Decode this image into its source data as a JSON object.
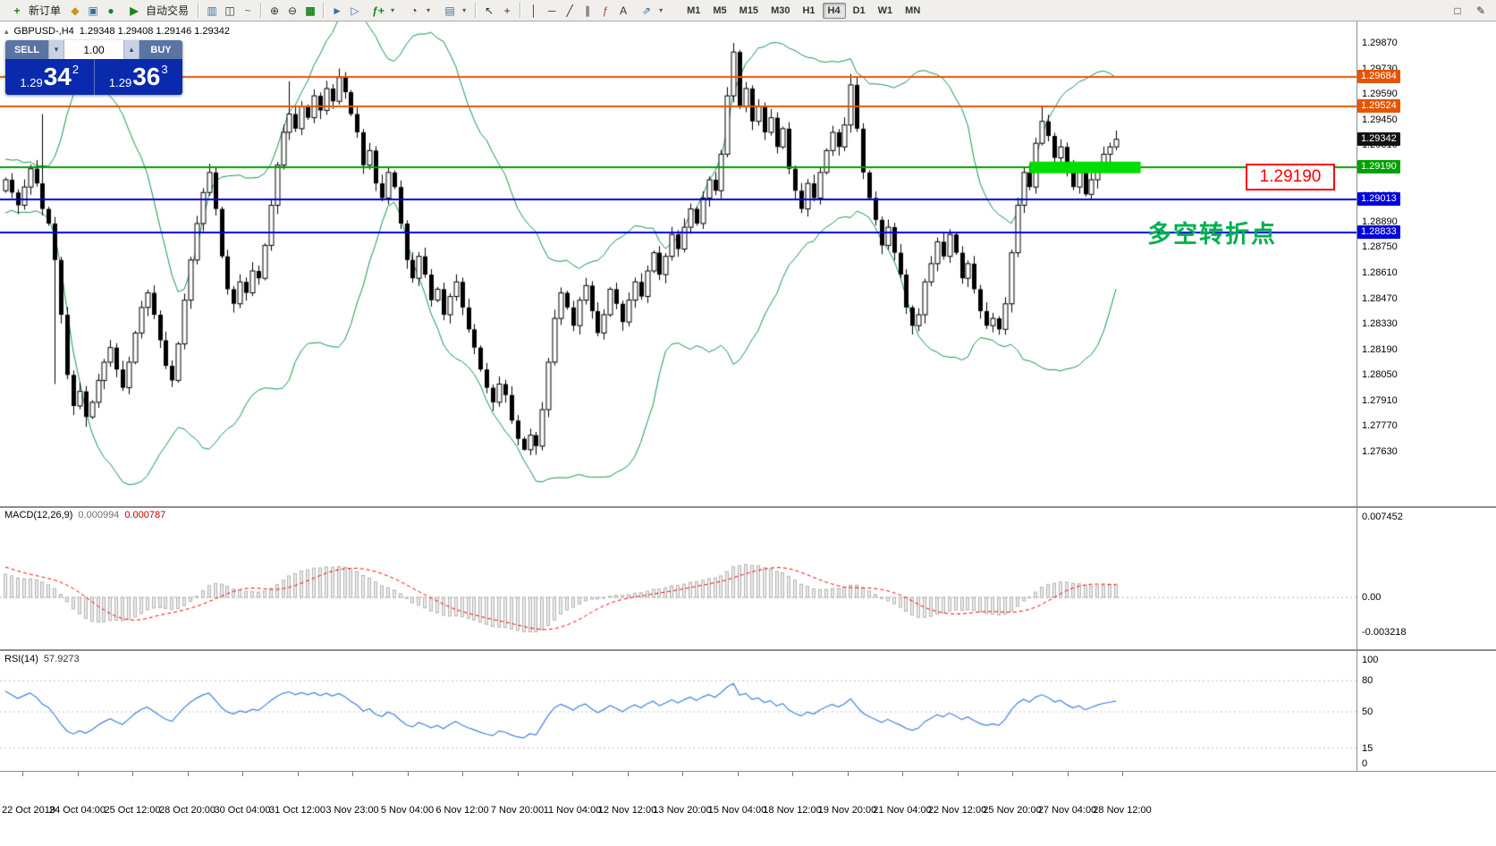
{
  "toolbar": {
    "new_order_label": "新订单",
    "autotrading_label": "自动交易",
    "timeframes": [
      "M1",
      "M5",
      "M15",
      "M30",
      "H1",
      "H4",
      "D1",
      "W1",
      "MN"
    ],
    "active_timeframe": "H4"
  },
  "icons": {
    "collapse": "▴",
    "new_order_plus": "+",
    "metaeditor": "◆",
    "data_window": "▣",
    "navigator": "●",
    "autotrading_play": "▶",
    "bars_chart": "▥",
    "candle_chart": "◫",
    "line_chart": "~",
    "zoom_in": "⊕",
    "zoom_out": "⊖",
    "tile_windows": "▦",
    "auto_scroll": "►",
    "chart_shift": "▷",
    "indicators": "ƒ+",
    "periods": "◔",
    "templates": "▤",
    "cursor": "↖",
    "crosshair": "+",
    "vertical_line": "│",
    "horizontal_line": "─",
    "trendline": "╱",
    "channel": "∥",
    "fibonacci": "ƒ",
    "text_tool": "A",
    "arrows_tool": "⇗",
    "dropdown_caret": "▾",
    "spinner_up": "▴",
    "spinner_down": "▾",
    "right_icon_1": "□",
    "right_icon_2": "✎"
  },
  "chart_header": {
    "symbol_period": "GBPUSD-,H4",
    "quote_line": "1.29348 1.29408 1.29146 1.29342"
  },
  "quote_panel": {
    "sell_label": "SELL",
    "buy_label": "BUY",
    "lot_value": "1.00",
    "sell_price_prefix": "1.29",
    "sell_price_big": "34",
    "sell_price_sup": "2",
    "buy_price_prefix": "1.29",
    "buy_price_big": "36",
    "buy_price_sup": "3",
    "panel_color": "#0A2AAE"
  },
  "annotations": {
    "pivot_label": "多空转折点",
    "price_tag": "1.29190"
  },
  "time_axis": {
    "labels": [
      "22 Oct 2019",
      "24 Oct 04:00",
      "25 Oct 12:00",
      "28 Oct 20:00",
      "30 Oct 04:00",
      "31 Oct 12:00",
      "3 Nov 23:00",
      "5 Nov 04:00",
      "6 Nov 12:00",
      "7 Nov 20:00",
      "11 Nov 04:00",
      "12 Nov 12:00",
      "13 Nov 20:00",
      "15 Nov 04:00",
      "18 Nov 12:00",
      "19 Nov 20:00",
      "21 Nov 04:00",
      "22 Nov 12:00",
      "25 Nov 20:00",
      "27 Nov 04:00",
      "28 Nov 12:00"
    ]
  },
  "chart_data": [
    {
      "type": "candlestick",
      "symbol": "GBPUSD-",
      "period": "H4",
      "ohlc_display": {
        "open": "1.29348",
        "high": "1.29408",
        "low": "1.29146",
        "close": "1.29342"
      },
      "ylim": [
        1.2733,
        1.2999
      ],
      "y_axis_labels": [
        "1.29870",
        "1.29730",
        "1.29590",
        "1.29450",
        "1.29310",
        "1.29170",
        "1.29030",
        "1.28890",
        "1.28750",
        "1.28610",
        "1.28470",
        "1.28330",
        "1.28190",
        "1.28050",
        "1.27910",
        "1.27770",
        "1.27630"
      ],
      "price_badges": [
        {
          "price": 1.29684,
          "label": "1.29684",
          "color": "#e65400"
        },
        {
          "price": 1.29524,
          "label": "1.29524",
          "color": "#e65400"
        },
        {
          "price": 1.29342,
          "label": "1.29342",
          "color": "#111111"
        },
        {
          "price": 1.2919,
          "label": "1.29190",
          "color": "#00a000"
        },
        {
          "price": 1.29013,
          "label": "1.29013",
          "color": "#0000dd"
        },
        {
          "price": 1.28833,
          "label": "1.28833",
          "color": "#0000dd"
        }
      ],
      "hlines": [
        {
          "price": 1.29684,
          "color": "#e65400",
          "width": 2
        },
        {
          "price": 1.29524,
          "color": "#e65400",
          "width": 2
        },
        {
          "price": 1.2919,
          "color": "#00a000",
          "width": 2
        },
        {
          "price": 1.29013,
          "color": "#0000e0",
          "width": 2
        },
        {
          "price": 1.28833,
          "color": "#0000e0",
          "width": 2
        }
      ],
      "highlight_zone": {
        "price": 1.2919,
        "from_index": 166,
        "to_index": 184,
        "color": "#00dd00"
      },
      "bollinger": {
        "period": 20,
        "deviation": 2,
        "color": "#149648"
      },
      "bull_color": "#ffffff",
      "bear_color": "#000000",
      "warmup_closes": [
        1.2742,
        1.2756,
        1.277,
        1.2784,
        1.2798,
        1.2812,
        1.2826,
        1.284,
        1.2854,
        1.2868,
        1.2882,
        1.2896,
        1.291,
        1.292,
        1.2915,
        1.2922,
        1.2912,
        1.2918,
        1.2908,
        1.2915,
        1.2905,
        1.2912,
        1.2902,
        1.291,
        1.29,
        1.2908,
        1.2898,
        1.2906,
        1.2896,
        1.2906
      ],
      "visible_closes": [
        1.2912,
        1.2905,
        1.2898,
        1.2908,
        1.2918,
        1.291,
        1.2896,
        1.2888,
        1.2868,
        1.2838,
        1.2805,
        1.2788,
        1.2796,
        1.2782,
        1.279,
        1.2802,
        1.2812,
        1.282,
        1.2808,
        1.2798,
        1.2812,
        1.2828,
        1.2842,
        1.285,
        1.2838,
        1.2824,
        1.281,
        1.2802,
        1.2822,
        1.2846,
        1.2868,
        1.2888,
        1.2905,
        1.2916,
        1.2896,
        1.287,
        1.2852,
        1.2844,
        1.2856,
        1.285,
        1.2862,
        1.2858,
        1.2876,
        1.2898,
        1.292,
        1.2938,
        1.2948,
        1.294,
        1.2952,
        1.2946,
        1.2958,
        1.295,
        1.2962,
        1.2955,
        1.2968,
        1.296,
        1.2948,
        1.2938,
        1.292,
        1.2928,
        1.291,
        1.2902,
        1.2916,
        1.2908,
        1.2888,
        1.2868,
        1.2858,
        1.287,
        1.286,
        1.2846,
        1.2852,
        1.2838,
        1.2848,
        1.2856,
        1.2842,
        1.283,
        1.282,
        1.2808,
        1.2798,
        1.279,
        1.28,
        1.2794,
        1.278,
        1.277,
        1.2764,
        1.2772,
        1.2766,
        1.2786,
        1.2812,
        1.2836,
        1.285,
        1.2842,
        1.2832,
        1.2846,
        1.2854,
        1.284,
        1.2828,
        1.2838,
        1.2852,
        1.2844,
        1.2834,
        1.2846,
        1.2856,
        1.2848,
        1.2862,
        1.2872,
        1.286,
        1.287,
        1.2882,
        1.2874,
        1.2886,
        1.2896,
        1.2888,
        1.2902,
        1.2912,
        1.2906,
        1.2926,
        1.2958,
        1.2982,
        1.2952,
        1.2962,
        1.2944,
        1.2952,
        1.2938,
        1.2946,
        1.293,
        1.294,
        1.2918,
        1.2906,
        1.2896,
        1.291,
        1.2902,
        1.2916,
        1.2928,
        1.2938,
        1.293,
        1.2942,
        1.2964,
        1.294,
        1.2916,
        1.2902,
        1.289,
        1.2876,
        1.2886,
        1.2872,
        1.286,
        1.2842,
        1.2832,
        1.2838,
        1.2856,
        1.2866,
        1.2878,
        1.287,
        1.2882,
        1.2872,
        1.2858,
        1.2866,
        1.2852,
        1.284,
        1.2832,
        1.2836,
        1.283,
        1.2844,
        1.2872,
        1.2898,
        1.2916,
        1.2908,
        1.2932,
        1.2944,
        1.2936,
        1.2924,
        1.293,
        1.2918,
        1.2908,
        1.2916,
        1.2904,
        1.2912,
        1.292,
        1.2926,
        1.293,
        1.29342
      ],
      "wick_overrides": [
        [
          6,
          "h",
          1.2948
        ],
        [
          8,
          "l",
          1.28
        ],
        [
          11,
          "l",
          1.2783
        ],
        [
          13,
          "l",
          1.27765
        ],
        [
          46,
          "h",
          1.2966
        ],
        [
          54,
          "h",
          1.2973
        ],
        [
          84,
          "l",
          1.27635
        ],
        [
          118,
          "h",
          1.2987
        ],
        [
          137,
          "h",
          1.297
        ],
        [
          147,
          "l",
          1.28272
        ],
        [
          161,
          "l",
          1.2827
        ],
        [
          168,
          "h",
          1.2952
        ]
      ]
    },
    {
      "type": "macd",
      "title": "MACD(12,26,9)",
      "params": [
        12,
        26,
        9
      ],
      "value_main": "0.000994",
      "value_signal": "0.000787",
      "scale_labels": [
        "0.007452",
        "0.00",
        "-0.003218"
      ],
      "scale_values": [
        0.007452,
        0,
        -0.003218
      ],
      "histogram_fill": "#ececec",
      "histogram_border": "#b4b4b4",
      "signal_color": "#ff0000"
    },
    {
      "type": "rsi",
      "title": "RSI(14)",
      "period": 14,
      "value": "57.9273",
      "scale_labels": [
        "100",
        "80",
        "50",
        "15",
        "0"
      ],
      "scale_values": [
        100,
        80,
        50,
        15,
        0
      ],
      "levels": [
        80,
        50,
        15
      ],
      "line_color": "#4080e0"
    }
  ]
}
